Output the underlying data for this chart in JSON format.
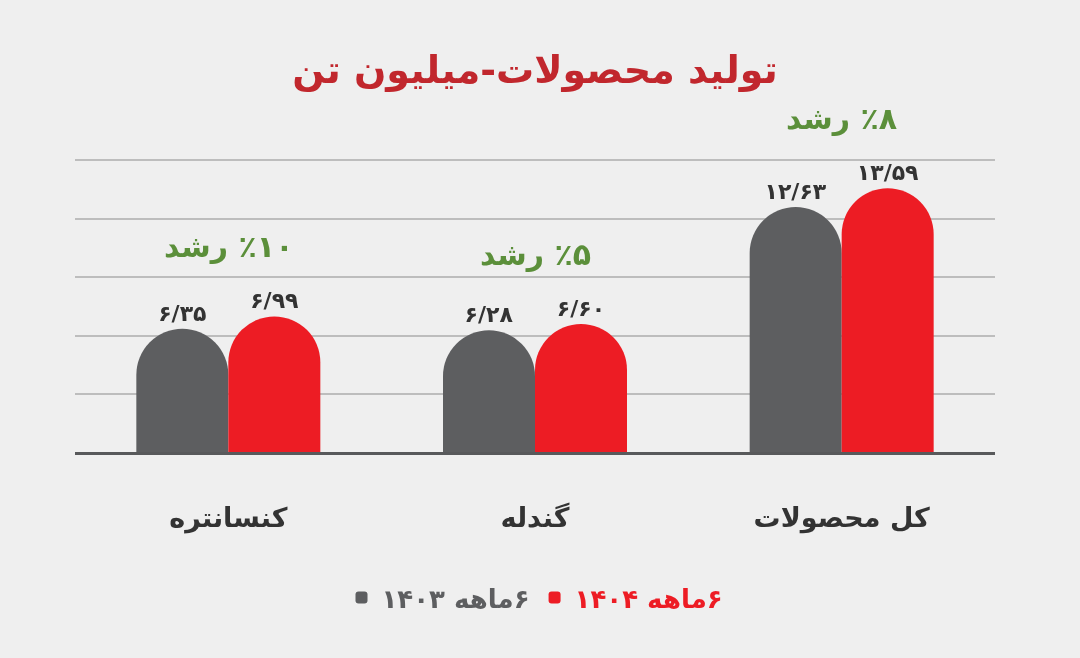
{
  "chart_data": {
    "type": "bar",
    "title": "تولید محصولات-میلیون تن",
    "categories": [
      "کنسانتره",
      "گندله",
      "کل محصولات"
    ],
    "series": [
      {
        "name": "۶ماهه ۱۴۰۳",
        "color": "#5d5e60",
        "values": [
          6.35,
          6.28,
          12.63
        ],
        "value_labels": [
          "۶/۳۵",
          "۶/۲۸",
          "۱۲/۶۳"
        ]
      },
      {
        "name": "۶ماهه ۱۴۰۴",
        "color": "#ed1c24",
        "values": [
          6.99,
          6.6,
          13.59
        ],
        "value_labels": [
          "۶/۹۹",
          "۶/۶۰",
          "۱۳/۵۹"
        ]
      }
    ],
    "ylim": [
      0,
      15
    ],
    "yticks": [
      {
        "value": 0,
        "label": null
      },
      {
        "value": 3,
        "label": null
      },
      {
        "value": 6,
        "label": null
      },
      {
        "value": 9,
        "label": null
      },
      {
        "value": 12,
        "label": null
      }
    ],
    "tick_labels": "x",
    "grid": "y",
    "legend": "bottom",
    "annotations": [
      "٪۱۰ رشد",
      "٪۵ رشد",
      "٪۸ رشد"
    ]
  }
}
